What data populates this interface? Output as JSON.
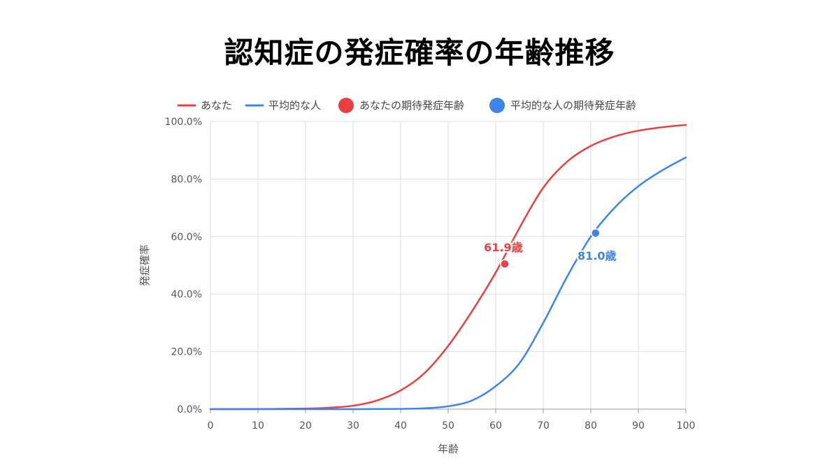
{
  "chart_data": {
    "type": "line",
    "title": "認知症の発症確率の年齢推移",
    "xlabel": "年齢",
    "ylabel": "発症確率",
    "xlim": [
      0,
      100
    ],
    "ylim": [
      0,
      100
    ],
    "x_ticks": [
      0,
      10,
      20,
      30,
      40,
      50,
      60,
      70,
      80,
      90,
      100
    ],
    "x_tick_labels": [
      "0",
      "10",
      "20",
      "30",
      "40",
      "50",
      "60",
      "70",
      "80",
      "90",
      "100"
    ],
    "y_ticks": [
      0,
      20,
      40,
      60,
      80,
      100
    ],
    "y_tick_labels": [
      "0.0%",
      "20.0%",
      "40.0%",
      "60.0%",
      "80.0%",
      "100.0%"
    ],
    "grid": true,
    "legend_position": "top-left",
    "legend": [
      "あなた",
      "平均的な人",
      "あなたの期待発症年齢",
      "平均的な人の期待発症年齢"
    ],
    "x": [
      0,
      10,
      20,
      25,
      30,
      35,
      40,
      45,
      50,
      55,
      60,
      65,
      70,
      75,
      80,
      85,
      90,
      95,
      100
    ],
    "series": [
      {
        "name": "あなた",
        "color": "#e84040",
        "values": [
          0.0,
          0.05,
          0.2,
          0.5,
          1.2,
          3.0,
          6.5,
          12.5,
          22.0,
          34.0,
          47.5,
          63.0,
          77.0,
          86.0,
          91.5,
          94.8,
          96.8,
          98.0,
          98.8
        ]
      },
      {
        "name": "平均的な人",
        "color": "#3d85e8",
        "values": [
          0.0,
          0.0,
          0.0,
          0.0,
          0.0,
          0.05,
          0.1,
          0.3,
          1.0,
          3.0,
          8.0,
          16.0,
          30.0,
          46.0,
          60.0,
          70.0,
          77.5,
          83.0,
          87.5
        ]
      }
    ],
    "points": [
      {
        "name": "あなたの期待発症年齢",
        "series": "あなた",
        "x": 61.9,
        "y": 50.5,
        "label": "61.9歳",
        "color": "#e84040"
      },
      {
        "name": "平均的な人の期待発症年齢",
        "series": "平均的な人",
        "x": 81.0,
        "y": 61.2,
        "label": "81.0歳",
        "color": "#3d85e8"
      }
    ]
  }
}
